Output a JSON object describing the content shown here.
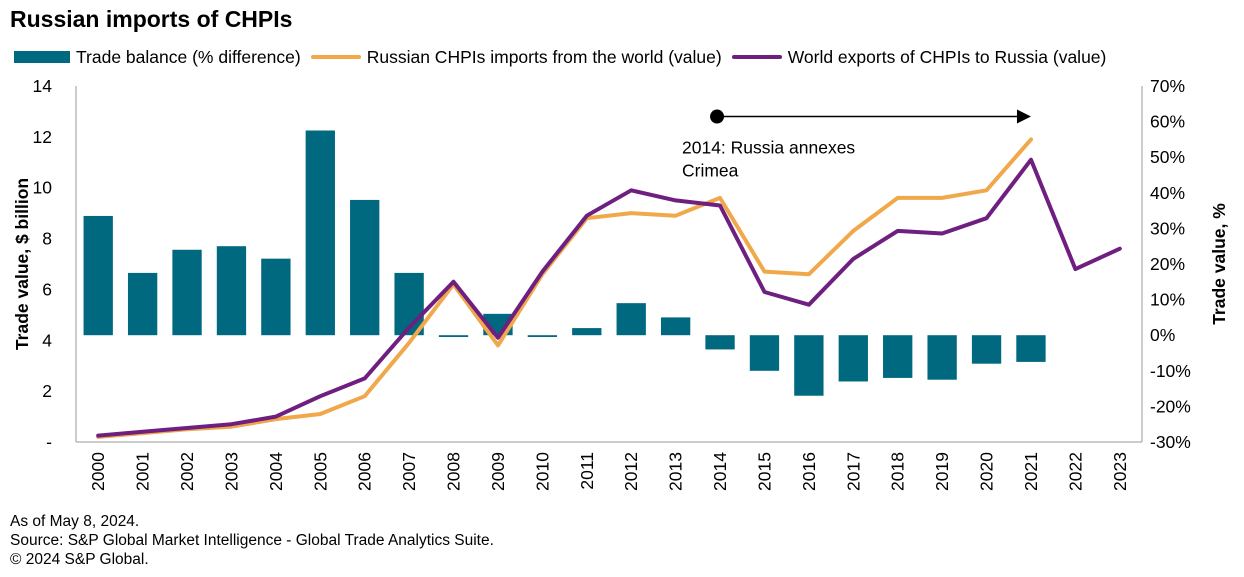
{
  "title": "Russian imports of CHPIs",
  "legend": {
    "bars": "Trade balance (% difference)",
    "orange": "Russian CHPIs imports from the world (value)",
    "purple": "World exports of CHPIs to Russia (value)"
  },
  "footer": {
    "line1": "As of May 8, 2024.",
    "line2": "Source: S&P Global Market Intelligence - Global Trade Analytics Suite.",
    "line3": "© 2024 S&P Global."
  },
  "colors": {
    "bars": "#00687f",
    "orange": "#f0a84a",
    "purple": "#6e1f7f"
  },
  "chart_data": {
    "type": "bar+line",
    "categories": [
      "2000",
      "2001",
      "2002",
      "2003",
      "2004",
      "2005",
      "2006",
      "2007",
      "2008",
      "2009",
      "2010",
      "2011",
      "2012",
      "2013",
      "2014",
      "2015",
      "2016",
      "2017",
      "2018",
      "2019",
      "2020",
      "2021",
      "2022",
      "2023"
    ],
    "left_axis": {
      "label": "Trade value, $ billion",
      "range": [
        0,
        14
      ],
      "ticks": [
        0,
        2,
        4,
        6,
        8,
        10,
        12,
        14
      ],
      "tick_labels": [
        "-",
        "2",
        "4",
        "6",
        "8",
        "10",
        "12",
        "14"
      ]
    },
    "right_axis": {
      "label": "Trade value, %",
      "range": [
        -30,
        70
      ],
      "ticks": [
        -30,
        -20,
        -10,
        0,
        10,
        20,
        30,
        40,
        50,
        60,
        70
      ],
      "tick_labels": [
        "-30%",
        "-20%",
        "-10%",
        "0%",
        "10%",
        "20%",
        "30%",
        "40%",
        "50%",
        "60%",
        "70%"
      ]
    },
    "series": [
      {
        "name": "Trade balance (% difference)",
        "type": "bar",
        "axis": "right",
        "values": [
          33.5,
          17.5,
          24,
          25,
          21.5,
          57.5,
          38,
          17.5,
          -0.5,
          6,
          -0.5,
          2,
          9,
          5,
          -4,
          -10,
          -17,
          -13,
          -12,
          -12.5,
          -8,
          -7.5,
          null,
          null
        ]
      },
      {
        "name": "Russian CHPIs imports from the world (value)",
        "type": "line",
        "axis": "left",
        "values": [
          0.2,
          0.35,
          0.5,
          0.6,
          0.9,
          1.1,
          1.8,
          3.9,
          6.2,
          3.8,
          6.6,
          8.8,
          9.0,
          8.9,
          9.6,
          6.7,
          6.6,
          8.3,
          9.6,
          9.6,
          9.9,
          11.9,
          null,
          null
        ]
      },
      {
        "name": "World exports of CHPIs to Russia (value)",
        "type": "line",
        "axis": "left",
        "values": [
          0.25,
          0.4,
          0.55,
          0.7,
          1.0,
          1.8,
          2.5,
          4.5,
          6.3,
          4.1,
          6.7,
          8.9,
          9.9,
          9.5,
          9.3,
          5.9,
          5.4,
          7.2,
          8.3,
          8.2,
          8.8,
          11.1,
          6.8,
          7.6
        ]
      }
    ],
    "annotation": {
      "text_line1": "2014: Russia annexes",
      "text_line2": "Crimea",
      "from_category": "2014",
      "to_category": "2021",
      "at_value": 12.8
    }
  }
}
